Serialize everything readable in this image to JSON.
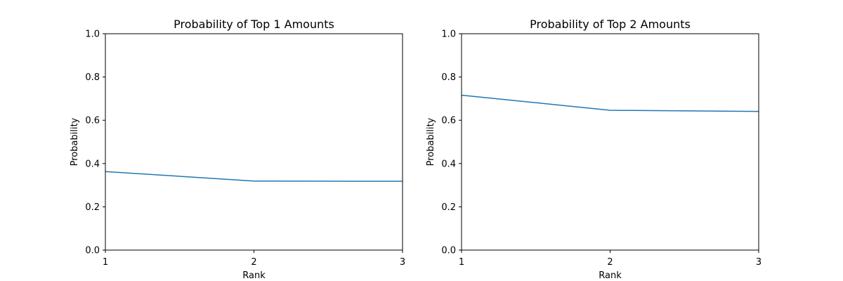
{
  "chart_data": [
    {
      "type": "line",
      "title": "Probability of Top 1 Amounts",
      "xlabel": "Rank",
      "ylabel": "Probability",
      "x": [
        1,
        2,
        3
      ],
      "xlim": [
        1,
        3
      ],
      "ylim": [
        0,
        1
      ],
      "xticks": [
        "1",
        "2",
        "3"
      ],
      "yticks": [
        "0.0",
        "0.2",
        "0.4",
        "0.6",
        "0.8",
        "1.0"
      ],
      "grid": false,
      "line_color": "#1f77b4",
      "series": [
        {
          "values": [
            0.363,
            0.319,
            0.318
          ]
        }
      ]
    },
    {
      "type": "line",
      "title": "Probability of Top 2 Amounts",
      "xlabel": "Rank",
      "ylabel": "Probability",
      "x": [
        1,
        2,
        3
      ],
      "xlim": [
        1,
        3
      ],
      "ylim": [
        0,
        1
      ],
      "xticks": [
        "1",
        "2",
        "3"
      ],
      "yticks": [
        "0.0",
        "0.2",
        "0.4",
        "0.6",
        "0.8",
        "1.0"
      ],
      "grid": false,
      "line_color": "#1f77b4",
      "series": [
        {
          "values": [
            0.716,
            0.646,
            0.641
          ]
        }
      ]
    }
  ]
}
